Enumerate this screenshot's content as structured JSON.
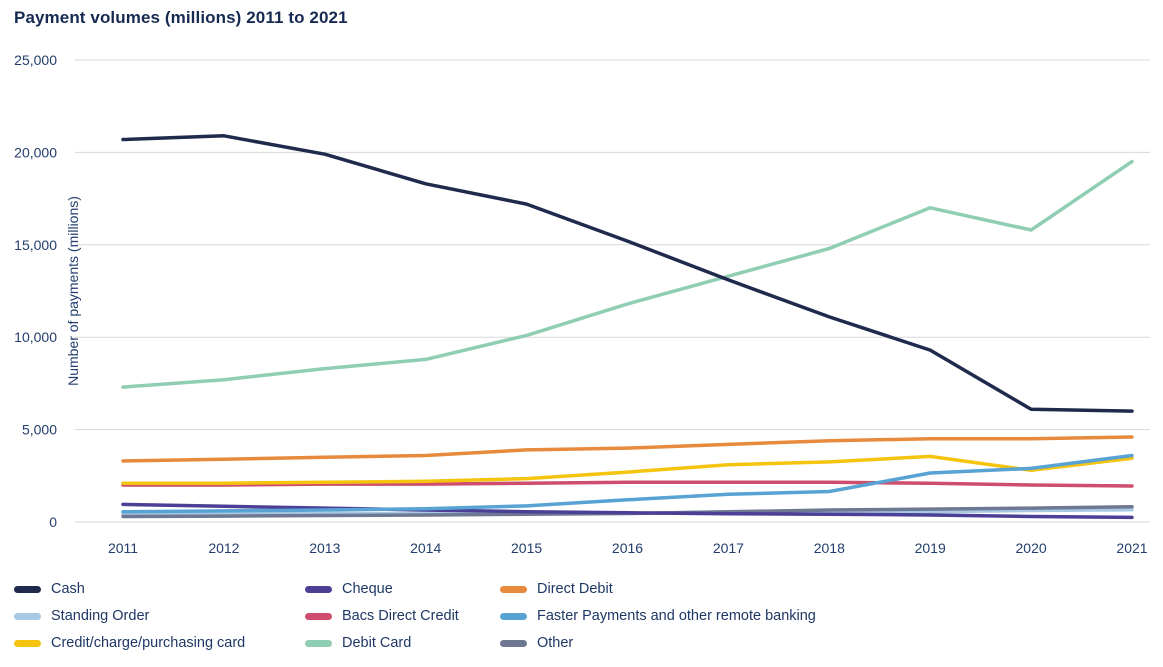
{
  "title": "Payment volumes (millions) 2011 to 2021",
  "y_axis": {
    "label": "Number of payments (millions)",
    "ticks": [
      "25,000",
      "20,000",
      "15,000",
      "10,000",
      "5,000",
      "0"
    ]
  },
  "x_axis": {
    "years": [
      "2011",
      "2012",
      "2013",
      "2014",
      "2015",
      "2016",
      "2017",
      "2018",
      "2019",
      "2020",
      "2021"
    ]
  },
  "chart_data": {
    "type": "line",
    "x": [
      2011,
      2012,
      2013,
      2014,
      2015,
      2016,
      2017,
      2018,
      2019,
      2020,
      2021
    ],
    "ylim": [
      0,
      25000
    ],
    "grid": true,
    "legend_position": "bottom",
    "series": [
      {
        "name": "Cash",
        "color": "#1f2a4c",
        "z": 9,
        "values": [
          20700,
          20900,
          19900,
          18300,
          17200,
          15200,
          13100,
          11100,
          9300,
          6100,
          6000
        ]
      },
      {
        "name": "Cheque",
        "color": "#4c3f96",
        "z": 3,
        "values": [
          950,
          850,
          750,
          650,
          560,
          500,
          450,
          420,
          380,
          300,
          250
        ]
      },
      {
        "name": "Direct Debit",
        "color": "#e88a3d",
        "z": 7,
        "values": [
          3300,
          3400,
          3500,
          3600,
          3900,
          4000,
          4200,
          4400,
          4500,
          4500,
          4600
        ]
      },
      {
        "name": "Standing Order",
        "color": "#a7c9e3",
        "z": 1,
        "values": [
          450,
          455,
          460,
          465,
          470,
          480,
          490,
          520,
          560,
          620,
          660
        ]
      },
      {
        "name": "Bacs Direct Credit",
        "color": "#ce4d6c",
        "z": 4,
        "values": [
          2000,
          2000,
          2050,
          2050,
          2100,
          2150,
          2150,
          2150,
          2100,
          2000,
          1950
        ]
      },
      {
        "name": "Faster Payments and other remote banking",
        "color": "#58a3d4",
        "z": 6,
        "values": [
          550,
          600,
          650,
          720,
          870,
          1200,
          1500,
          1650,
          2650,
          2900,
          3600
        ]
      },
      {
        "name": "Credit/charge/purchasing card",
        "color": "#f4c40f",
        "z": 5,
        "values": [
          2100,
          2100,
          2150,
          2200,
          2350,
          2700,
          3100,
          3250,
          3550,
          2800,
          3450
        ]
      },
      {
        "name": "Debit Card",
        "color": "#90ceb3",
        "z": 8,
        "values": [
          7300,
          7700,
          8300,
          8800,
          10100,
          11800,
          13300,
          14800,
          17000,
          15800,
          19500
        ]
      },
      {
        "name": "Other",
        "color": "#6e7892",
        "z": 2,
        "values": [
          300,
          320,
          350,
          380,
          420,
          460,
          550,
          650,
          700,
          750,
          820
        ]
      }
    ]
  },
  "colors": {
    "title_text": "#172a52",
    "axis_text": "#223e6d",
    "gridline": "#d8d8d8",
    "background": "#ffffff"
  }
}
